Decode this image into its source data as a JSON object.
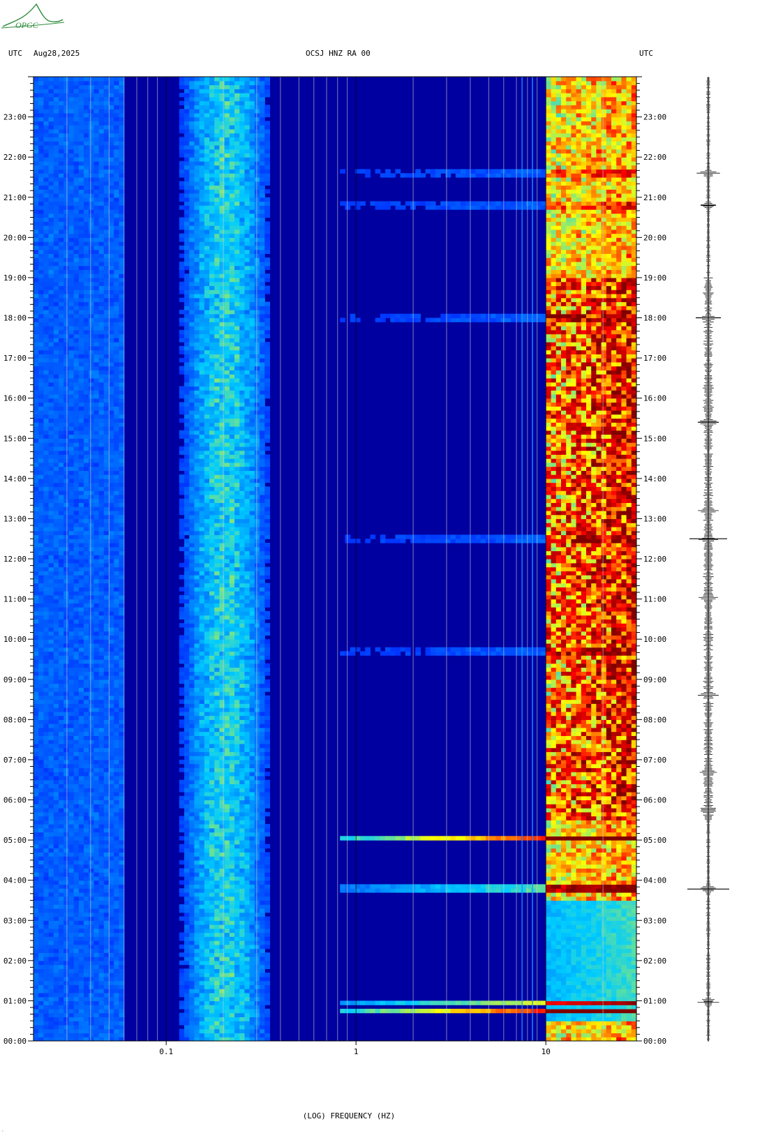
{
  "header": {
    "left_tz": "UTC",
    "date": "Aug28,2025",
    "channel": "OCSJ HNZ RA 00",
    "right_tz": "UTC"
  },
  "logo": {
    "text": "OPGC",
    "color": "#2e8b3a"
  },
  "chart_data": {
    "type": "heatmap",
    "title": "OCSJ HNZ RA 00",
    "xlabel": "(LOG) FREQUENCY (HZ)",
    "ylabel": "UTC",
    "x_scale": "log",
    "xlim": [
      0.02,
      30
    ],
    "x_ticks": [
      {
        "value": 0.1,
        "label": "0.1"
      },
      {
        "value": 1,
        "label": "1"
      },
      {
        "value": 10,
        "label": "10"
      }
    ],
    "ylim_hours": [
      0,
      24
    ],
    "y_ticks": [
      "00:00",
      "01:00",
      "02:00",
      "03:00",
      "04:00",
      "05:00",
      "06:00",
      "07:00",
      "08:00",
      "09:00",
      "10:00",
      "11:00",
      "12:00",
      "13:00",
      "14:00",
      "15:00",
      "16:00",
      "17:00",
      "18:00",
      "19:00",
      "20:00",
      "21:00",
      "22:00",
      "23:00"
    ],
    "colormap": [
      "#0000a0",
      "#0033ff",
      "#00ccff",
      "#ffff00",
      "#ff0000",
      "#800000"
    ],
    "features": {
      "microseism_band_hz": [
        0.12,
        0.35
      ],
      "anthropogenic_band_hz": [
        10,
        30
      ],
      "persistent_lines_hz": [
        7.5,
        8.5
      ],
      "quiet_hours": [
        0.5,
        3.5
      ],
      "strong_events_hours": [
        0.75,
        0.97,
        3.72,
        3.82,
        5.05,
        9.7,
        12.5,
        18.0,
        20.8,
        21.6
      ]
    }
  },
  "seismogram": {
    "events_hours": [
      0.97,
      3.78,
      5.75,
      6.7,
      8.6,
      11.05,
      12.5,
      13.2,
      15.4,
      18.0,
      20.8,
      21.6
    ]
  }
}
